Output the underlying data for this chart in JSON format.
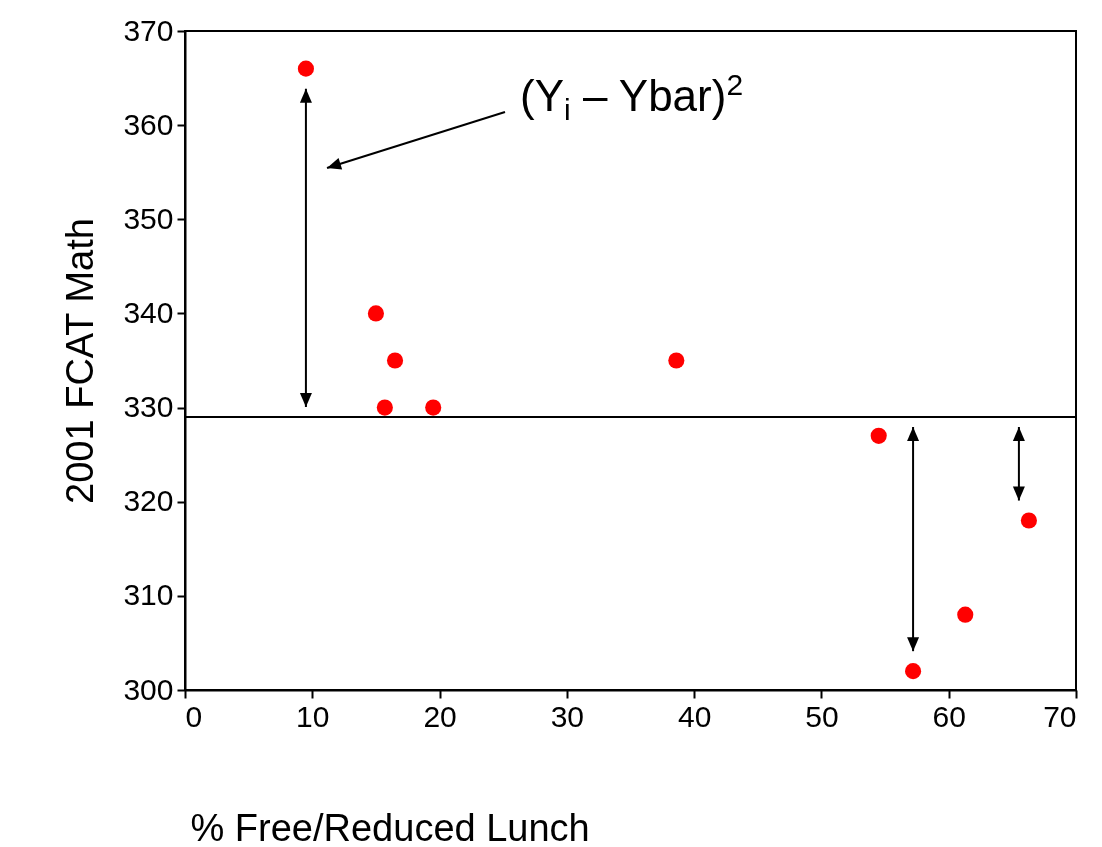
{
  "chart_data": {
    "type": "scatter",
    "xlabel": "% Free/Reduced Lunch",
    "ylabel": "2001 FCAT Math",
    "x": [
      9.5,
      15.0,
      16.5,
      15.7,
      19.5,
      38.6,
      54.5,
      57.2,
      61.3,
      66.3
    ],
    "series": [
      {
        "color": "#ff0000",
        "values": [
          366,
          340,
          335,
          330,
          330,
          335,
          327,
          302,
          308,
          318
        ]
      }
    ],
    "xlim": [
      0,
      70
    ],
    "xticks": [
      0,
      10,
      20,
      30,
      40,
      50,
      60,
      70
    ],
    "ylim": [
      300,
      370
    ],
    "yticks": [
      300,
      310,
      320,
      330,
      340,
      350,
      360,
      370
    ],
    "ref_lines": [
      {
        "axis": "y",
        "value": 329,
        "color": "#000000"
      }
    ],
    "annotations": [
      "(Y$_{i}$ – Ybar)$^{2}$"
    ],
    "marker": "circle",
    "grid": false,
    "legend": false
  }
}
